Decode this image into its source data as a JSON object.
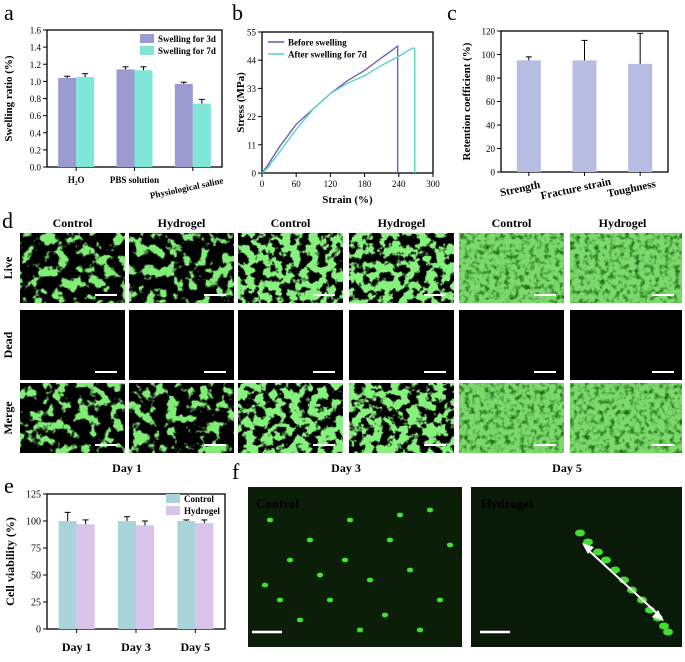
{
  "panel_letters": {
    "a": "a",
    "b": "b",
    "c": "c",
    "d": "d",
    "e": "e",
    "f": "f"
  },
  "colors": {
    "swell3": "#9b9bd0",
    "swell7": "#7fe6d8",
    "before": "#6d5fb5",
    "after": "#5ad4c9",
    "retention": "#b7bde2",
    "control": "#a9d4dc",
    "hydrogel": "#d8c3ea",
    "cell": "#44dd33"
  },
  "chart_data": [
    {
      "id": "a",
      "type": "bar",
      "ylabel": "Swelling ratio (%)",
      "ylim": [
        0,
        1.6
      ],
      "yticks": [
        "0.0",
        "0.2",
        "0.4",
        "0.6",
        "0.8",
        "1.0",
        "1.2",
        "1.4",
        "1.6"
      ],
      "categories": [
        "H₂O",
        "PBS solution",
        "Physiological saline"
      ],
      "series": [
        {
          "name": "Swelling for 3d",
          "values": [
            1.04,
            1.14,
            0.97
          ],
          "errors": [
            0.02,
            0.03,
            0.02
          ]
        },
        {
          "name": "Swelling for 7d",
          "values": [
            1.05,
            1.13,
            0.74
          ],
          "errors": [
            0.04,
            0.04,
            0.05
          ]
        }
      ]
    },
    {
      "id": "b",
      "type": "line",
      "xlabel": "Strain (%)",
      "ylabel": "Stress (MPa)",
      "xlim": [
        0,
        300
      ],
      "ylim": [
        0,
        55
      ],
      "xticks": [
        "0",
        "60",
        "120",
        "180",
        "240",
        "300"
      ],
      "yticks": [
        "0",
        "11",
        "22",
        "33",
        "44",
        "55"
      ],
      "series": [
        {
          "name": "Before swelling",
          "x": [
            0,
            10,
            30,
            60,
            90,
            120,
            150,
            180,
            210,
            232,
            238,
            238
          ],
          "y": [
            0,
            3,
            10,
            19,
            25,
            31,
            36,
            40,
            45,
            48.5,
            49.5,
            0
          ]
        },
        {
          "name": "After swelling for 7d",
          "x": [
            0,
            10,
            30,
            60,
            90,
            120,
            150,
            180,
            210,
            240,
            258,
            266,
            268,
            268
          ],
          "y": [
            0,
            2,
            8,
            17,
            25,
            31,
            35,
            38,
            42,
            45.5,
            48,
            48.8,
            48,
            0
          ]
        }
      ]
    },
    {
      "id": "c",
      "type": "bar",
      "ylabel": "Retention coefficient (%)",
      "ylim": [
        0,
        120
      ],
      "yticks": [
        "0",
        "20",
        "40",
        "60",
        "80",
        "100",
        "120"
      ],
      "categories": [
        "Strength",
        "Fracture strain",
        "Toughness"
      ],
      "values": [
        95,
        95,
        92
      ],
      "errors": [
        3,
        17,
        26
      ]
    },
    {
      "id": "e",
      "type": "bar",
      "ylabel": "Cell viability (%)",
      "ylim": [
        0,
        125
      ],
      "yticks": [
        "0",
        "25",
        "50",
        "75",
        "100",
        "125"
      ],
      "categories": [
        "Day 1",
        "Day 3",
        "Day 5"
      ],
      "series": [
        {
          "name": "Control",
          "values": [
            100,
            100,
            100
          ],
          "errors": [
            8,
            4,
            1
          ]
        },
        {
          "name": "Hydrogel",
          "values": [
            97,
            96,
            98
          ],
          "errors": [
            4,
            4,
            3
          ]
        }
      ]
    }
  ],
  "panel_d": {
    "column_labels": [
      "Control",
      "Hydrogel",
      "Control",
      "Hydrogel",
      "Control",
      "Hydrogel"
    ],
    "row_labels": [
      "Live",
      "Dead",
      "Merge"
    ],
    "day_labels": [
      "Day 1",
      "Day 3",
      "Day 5"
    ]
  },
  "panel_f": {
    "left_label": "Control",
    "right_label": "Hydrogel"
  }
}
